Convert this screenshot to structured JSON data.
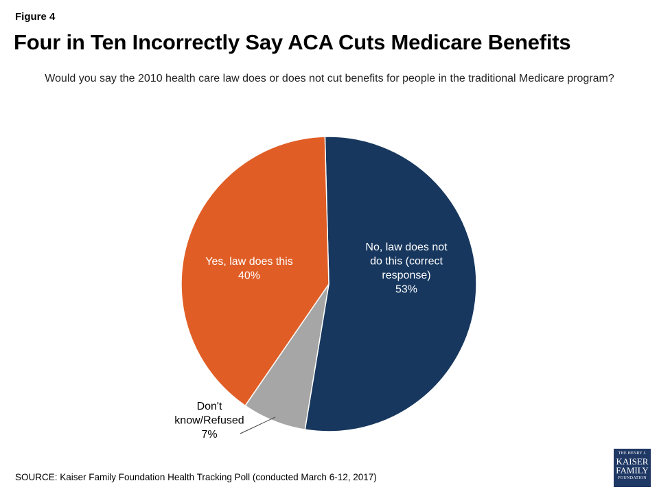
{
  "figure_label": "Figure 4",
  "title": "Four in Ten Incorrectly Say ACA Cuts Medicare Benefits",
  "subtitle": "Would you say the 2010 health care law does or does not cut benefits for people in the traditional Medicare program?",
  "source": "SOURCE: Kaiser Family Foundation Health Tracking Poll (conducted March 6-12, 2017)",
  "logo": {
    "line1": "THE HENRY J.",
    "line2": "KAISER",
    "line3": "FAMILY",
    "line4": "FOUNDATION"
  },
  "chart_data": {
    "type": "pie",
    "slices": [
      {
        "label_lines": [
          "No, law does not",
          "do this (correct",
          "response)"
        ],
        "value_label": "53%",
        "value": 53,
        "color": "#17375e",
        "label_color": "#ffffff"
      },
      {
        "label_lines": [
          "Don't",
          "know/Refused"
        ],
        "value_label": "7%",
        "value": 7,
        "color": "#a6a6a6",
        "label_color": "#000000"
      },
      {
        "label_lines": [
          "Yes, law does this"
        ],
        "value_label": "40%",
        "value": 40,
        "color": "#e05e26",
        "label_color": "#ffffff"
      }
    ]
  }
}
